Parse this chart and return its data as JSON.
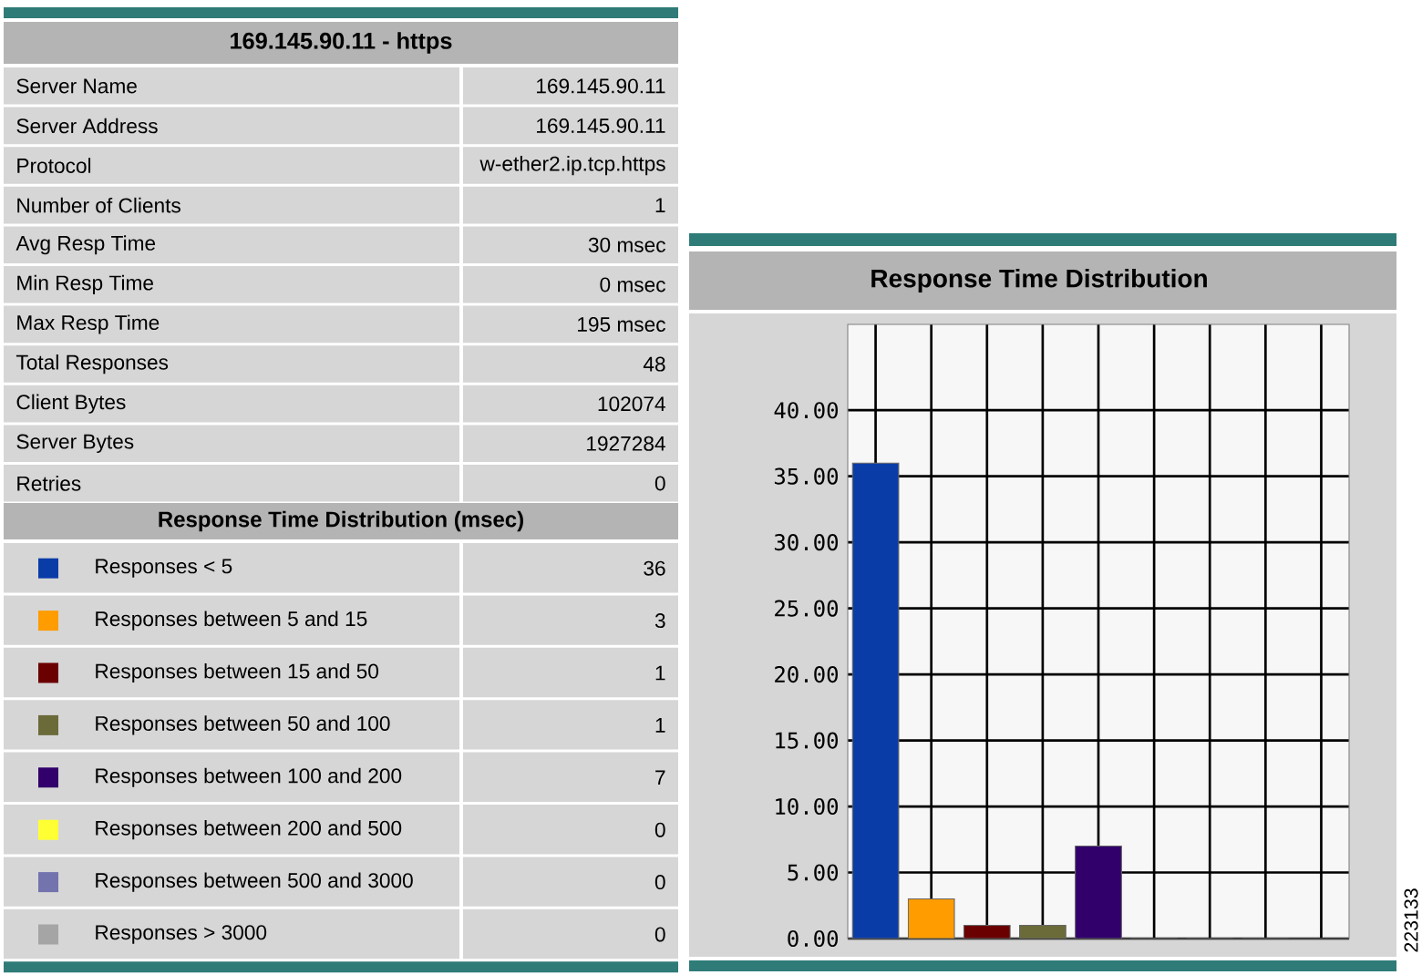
{
  "chart_data": [
    {
      "type": "other",
      "title": "169.145.90.11 - https",
      "annotations": [
        "Server Name",
        "169.145.90.11",
        "Server Address",
        "169.145.90.11",
        "Protocol",
        "w-ether2.ip.tcp.https",
        "Number of Clients",
        "1",
        "Avg Resp Time",
        "30 msec",
        "Min Resp Time",
        "0 msec",
        "Max Resp Time",
        "195 msec",
        "Total Responses",
        "48",
        "Client Bytes",
        "102074",
        "Server Bytes",
        "1927284",
        "Retries",
        "0"
      ]
    },
    {
      "type": "bar",
      "title": "Response Time Distribution",
      "legend_title": "Response Time Distribution (msec)",
      "legend": "left",
      "grid": true,
      "categories": [
        null,
        null,
        null,
        null,
        null,
        null,
        null,
        null
      ],
      "ylim": [
        0,
        46.5
      ],
      "yticks": [
        {
          "value": 0,
          "label": "0.00"
        },
        {
          "value": 5,
          "label": "5.00"
        },
        {
          "value": 10,
          "label": "10.00"
        },
        {
          "value": 15,
          "label": "15.00"
        },
        {
          "value": 20,
          "label": "20.00"
        },
        {
          "value": 25,
          "label": "25.00"
        },
        {
          "value": 30,
          "label": "30.00"
        },
        {
          "value": 35,
          "label": "35.00"
        },
        {
          "value": 40,
          "label": "40.00"
        }
      ],
      "annotations": [
        "223133",
        "36",
        "3",
        "1",
        "1",
        "7",
        "0",
        "0",
        "0"
      ],
      "series": [
        {
          "name": "Responses < 5",
          "color": "#0a3ca8",
          "values": [
            36,
            null,
            null,
            null,
            null,
            null,
            null,
            null
          ]
        },
        {
          "name": "Responses between 5 and 15",
          "color": "#ff9c00",
          "values": [
            null,
            3,
            null,
            null,
            null,
            null,
            null,
            null
          ]
        },
        {
          "name": "Responses between 15 and 50",
          "color": "#6b0000",
          "values": [
            null,
            null,
            1,
            null,
            null,
            null,
            null,
            null
          ]
        },
        {
          "name": "Responses between 50 and 100",
          "color": "#6b6b3a",
          "values": [
            null,
            null,
            null,
            1,
            null,
            null,
            null,
            null
          ]
        },
        {
          "name": "Responses between 100 and 200",
          "color": "#31006b",
          "values": [
            null,
            null,
            null,
            null,
            7,
            null,
            null,
            null
          ]
        },
        {
          "name": "Responses between 200 and 500",
          "color": "#ffff33",
          "values": [
            null,
            null,
            null,
            null,
            null,
            0,
            null,
            null
          ]
        },
        {
          "name": "Responses between 500 and 3000",
          "color": "#7373ad",
          "values": [
            null,
            null,
            null,
            null,
            null,
            null,
            0,
            null
          ]
        },
        {
          "name": "Responses > 3000",
          "color": "#a5a5a5",
          "values": [
            null,
            null,
            null,
            null,
            null,
            null,
            null,
            0
          ]
        }
      ]
    }
  ]
}
